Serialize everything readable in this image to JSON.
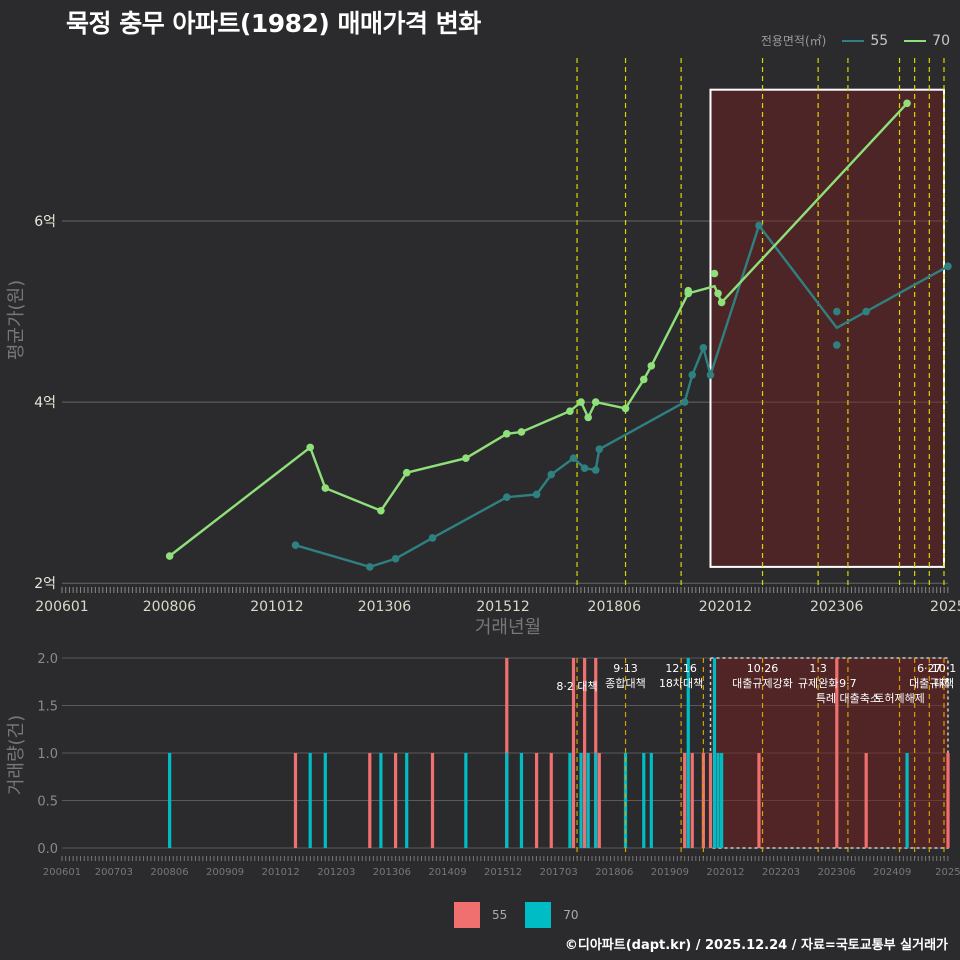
{
  "title": "묵정 충무 아파트(1982) 매매가격 변화",
  "legend": {
    "title": "전용면적(㎡)",
    "items": [
      {
        "label": "55",
        "color": "#2f8080"
      },
      {
        "label": "70",
        "color": "#8fe07a"
      }
    ]
  },
  "bar_legend": {
    "items": [
      {
        "label": "55",
        "color": "#f07070"
      },
      {
        "label": "70",
        "color": "#00bcc4"
      }
    ]
  },
  "credit": "©디아파트(dapt.kr) / 2025.12.24 / 자료=국토교통부 실거래가",
  "chart_data": [
    {
      "type": "line",
      "title": "묵정 충무 아파트(1982) 매매가격 변화",
      "xlabel": "거래년월",
      "ylabel": "평균가(원)",
      "xlim": [
        2006.0,
        2025.92
      ],
      "ylim": [
        1.98,
        7.8
      ],
      "x_ticks": [
        {
          "v": 2006.0,
          "label": "200601"
        },
        {
          "v": 2008.417,
          "label": "200806"
        },
        {
          "v": 2010.833,
          "label": "201012"
        },
        {
          "v": 2013.25,
          "label": "201306"
        },
        {
          "v": 2015.917,
          "label": "201512"
        },
        {
          "v": 2018.417,
          "label": "201806"
        },
        {
          "v": 2020.917,
          "label": "202012"
        },
        {
          "v": 2023.417,
          "label": "202306"
        },
        {
          "v": 2025.917,
          "label": "2025"
        }
      ],
      "y_ticks": [
        {
          "v": 2,
          "label": "2억"
        },
        {
          "v": 4,
          "label": "4억"
        },
        {
          "v": 6,
          "label": "6억"
        }
      ],
      "series": [
        {
          "name": "55",
          "color": "#2f8080",
          "line": [
            [
              2011.25,
              2.42
            ],
            [
              2012.92,
              2.18
            ],
            [
              2013.5,
              2.27
            ],
            [
              2014.33,
              2.5
            ],
            [
              2016.0,
              2.95
            ],
            [
              2016.67,
              2.98
            ],
            [
              2017.0,
              3.2
            ],
            [
              2017.5,
              3.38
            ],
            [
              2017.75,
              3.27
            ],
            [
              2018.0,
              3.25
            ],
            [
              2018.08,
              3.48
            ],
            [
              2020.0,
              4.0
            ],
            [
              2020.17,
              4.3
            ],
            [
              2020.42,
              4.6
            ],
            [
              2020.58,
              4.3
            ],
            [
              2021.67,
              5.95
            ],
            [
              2023.42,
              4.82
            ],
            [
              2024.08,
              5.0
            ],
            [
              2025.92,
              5.5
            ]
          ],
          "points": [
            [
              2011.25,
              2.42
            ],
            [
              2012.92,
              2.18
            ],
            [
              2013.5,
              2.27
            ],
            [
              2014.33,
              2.5
            ],
            [
              2016.0,
              2.95
            ],
            [
              2016.67,
              2.98
            ],
            [
              2017.0,
              3.2
            ],
            [
              2017.5,
              3.38
            ],
            [
              2017.75,
              3.27
            ],
            [
              2018.0,
              3.25
            ],
            [
              2018.08,
              3.48
            ],
            [
              2020.0,
              4.0
            ],
            [
              2020.17,
              4.3
            ],
            [
              2020.42,
              4.6
            ],
            [
              2020.58,
              4.3
            ],
            [
              2021.67,
              5.95
            ],
            [
              2023.42,
              5.0
            ],
            [
              2023.42,
              4.63
            ],
            [
              2024.08,
              5.0
            ],
            [
              2025.92,
              5.5
            ]
          ]
        },
        {
          "name": "70",
          "color": "#8fe07a",
          "line": [
            [
              2008.42,
              2.3
            ],
            [
              2011.58,
              3.5
            ],
            [
              2011.92,
              3.05
            ],
            [
              2013.17,
              2.8
            ],
            [
              2013.75,
              3.22
            ],
            [
              2015.08,
              3.38
            ],
            [
              2016.0,
              3.65
            ],
            [
              2016.33,
              3.67
            ],
            [
              2017.42,
              3.9
            ],
            [
              2017.67,
              4.0
            ],
            [
              2017.83,
              3.83
            ],
            [
              2018.0,
              4.0
            ],
            [
              2018.67,
              3.93
            ],
            [
              2019.08,
              4.25
            ],
            [
              2019.25,
              4.4
            ],
            [
              2020.08,
              5.2
            ],
            [
              2020.67,
              5.28
            ],
            [
              2020.83,
              5.1
            ],
            [
              2025.0,
              7.3
            ]
          ],
          "points": [
            [
              2008.42,
              2.3
            ],
            [
              2011.58,
              3.5
            ],
            [
              2011.92,
              3.05
            ],
            [
              2013.17,
              2.8
            ],
            [
              2013.75,
              3.22
            ],
            [
              2015.08,
              3.38
            ],
            [
              2016.0,
              3.65
            ],
            [
              2016.33,
              3.67
            ],
            [
              2017.42,
              3.9
            ],
            [
              2017.67,
              4.0
            ],
            [
              2017.83,
              3.83
            ],
            [
              2018.0,
              4.0
            ],
            [
              2018.67,
              3.93
            ],
            [
              2019.08,
              4.25
            ],
            [
              2019.25,
              4.4
            ],
            [
              2020.08,
              5.2
            ],
            [
              2020.08,
              5.23
            ],
            [
              2020.67,
              5.42
            ],
            [
              2020.75,
              5.2
            ],
            [
              2020.83,
              5.1
            ],
            [
              2025.0,
              7.3
            ]
          ]
        }
      ],
      "policy_lines": [
        2017.58,
        2018.67,
        2019.92,
        2021.75,
        2023.0,
        2023.67,
        2024.83,
        2025.17,
        2025.5,
        2025.83
      ],
      "highlight_range": [
        2020.58,
        2025.83
      ],
      "highlight_y": [
        2.18,
        7.45
      ]
    },
    {
      "type": "bar",
      "xlabel": "",
      "ylabel": "거래량(건)",
      "xlim": [
        2006.0,
        2025.92
      ],
      "ylim": [
        0,
        2
      ],
      "y_ticks": [
        {
          "v": 0,
          "label": "0.0"
        },
        {
          "v": 0.5,
          "label": "0.5"
        },
        {
          "v": 1,
          "label": "1.0"
        },
        {
          "v": 1.5,
          "label": "1.5"
        },
        {
          "v": 2,
          "label": "2.0"
        }
      ],
      "x_ticks": [
        {
          "v": 2006.0,
          "label": "200601"
        },
        {
          "v": 2007.167,
          "label": "200703"
        },
        {
          "v": 2008.417,
          "label": "200806"
        },
        {
          "v": 2009.667,
          "label": "200909"
        },
        {
          "v": 2010.917,
          "label": "201012"
        },
        {
          "v": 2012.167,
          "label": "201203"
        },
        {
          "v": 2013.417,
          "label": "201306"
        },
        {
          "v": 2014.667,
          "label": "201409"
        },
        {
          "v": 2015.917,
          "label": "201512"
        },
        {
          "v": 2017.167,
          "label": "201703"
        },
        {
          "v": 2018.417,
          "label": "201806"
        },
        {
          "v": 2019.667,
          "label": "201909"
        },
        {
          "v": 2020.917,
          "label": "202012"
        },
        {
          "v": 2022.167,
          "label": "202203"
        },
        {
          "v": 2023.417,
          "label": "202306"
        },
        {
          "v": 2024.667,
          "label": "202409"
        },
        {
          "v": 2025.917,
          "label": "2025"
        }
      ],
      "series": [
        {
          "name": "55",
          "color": "#f07070",
          "bars": [
            [
              2011.25,
              1
            ],
            [
              2012.92,
              1
            ],
            [
              2013.5,
              1
            ],
            [
              2014.33,
              1
            ],
            [
              2016.0,
              2
            ],
            [
              2016.67,
              1
            ],
            [
              2017.0,
              1
            ],
            [
              2017.5,
              2
            ],
            [
              2017.75,
              2
            ],
            [
              2018.0,
              2
            ],
            [
              2018.08,
              1
            ],
            [
              2020.0,
              1
            ],
            [
              2020.17,
              1
            ],
            [
              2020.42,
              1
            ],
            [
              2020.58,
              1
            ],
            [
              2021.67,
              1
            ],
            [
              2023.42,
              2
            ],
            [
              2024.08,
              1
            ],
            [
              2025.92,
              1
            ]
          ]
        },
        {
          "name": "70",
          "color": "#00bcc4",
          "bars": [
            [
              2008.42,
              1
            ],
            [
              2011.58,
              1
            ],
            [
              2011.92,
              1
            ],
            [
              2013.17,
              1
            ],
            [
              2013.75,
              1
            ],
            [
              2015.08,
              1
            ],
            [
              2016.0,
              1
            ],
            [
              2016.33,
              1
            ],
            [
              2017.42,
              1
            ],
            [
              2017.67,
              1
            ],
            [
              2017.83,
              1
            ],
            [
              2018.0,
              1
            ],
            [
              2018.67,
              1
            ],
            [
              2019.08,
              1
            ],
            [
              2019.25,
              1
            ],
            [
              2020.08,
              2
            ],
            [
              2020.67,
              2
            ],
            [
              2020.75,
              1
            ],
            [
              2020.83,
              1
            ],
            [
              2025.0,
              1
            ]
          ]
        }
      ],
      "policy_lines": [
        2017.58,
        2018.67,
        2019.92,
        2020.42,
        2021.75,
        2023.0,
        2023.67,
        2024.83,
        2025.17,
        2025.5,
        2025.83
      ],
      "highlight_range": [
        2020.58,
        2025.92
      ],
      "annotations": [
        {
          "x": 2017.58,
          "line": 1,
          "text": "8·2 대책"
        },
        {
          "x": 2018.67,
          "line": 0,
          "text": "9·13"
        },
        {
          "x": 2018.67,
          "line": 1,
          "text": "종합대책"
        },
        {
          "x": 2019.92,
          "line": 0,
          "text": "12·16"
        },
        {
          "x": 2019.92,
          "line": 1,
          "text": "18차대책"
        },
        {
          "x": 2021.75,
          "line": 0,
          "text": "10·26"
        },
        {
          "x": 2021.75,
          "line": 1,
          "text": "대출규제강화"
        },
        {
          "x": 2023.0,
          "line": 0,
          "text": "1·3"
        },
        {
          "x": 2023.0,
          "line": 1,
          "text": "규제완화"
        },
        {
          "x": 2023.67,
          "line": 1,
          "text": "9·7"
        },
        {
          "x": 2023.67,
          "line": 2,
          "text": "특례 대출축소"
        },
        {
          "x": 2024.83,
          "line": 2,
          "text": "토허제해제"
        },
        {
          "x": 2025.5,
          "line": 0,
          "text": "6·27"
        },
        {
          "x": 2025.83,
          "line": 0,
          "text": "10·1"
        },
        {
          "x": 2025.5,
          "line": 1,
          "text": "대출규제"
        },
        {
          "x": 2025.83,
          "line": 1,
          "text": "대책"
        }
      ]
    }
  ]
}
